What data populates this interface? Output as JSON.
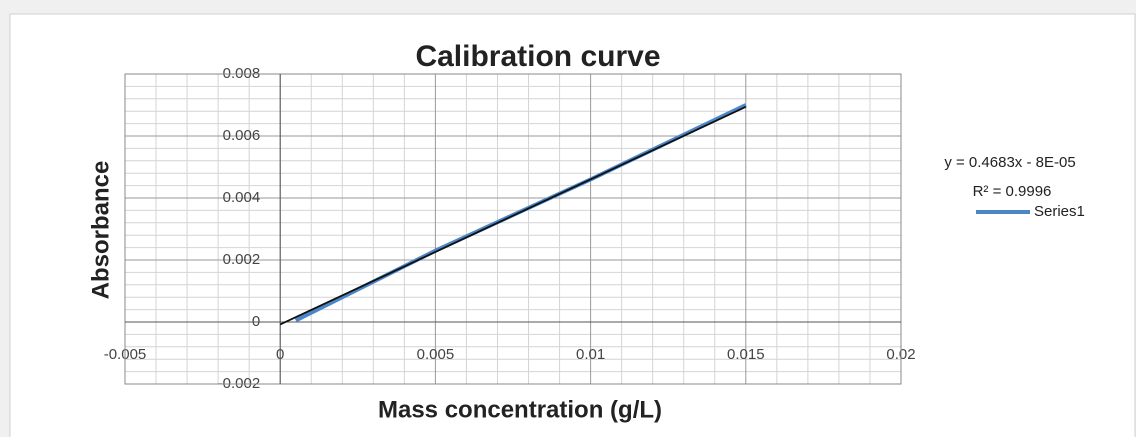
{
  "chart_data": {
    "type": "scatter",
    "title": "Calibration curve",
    "xlabel": "Mass concentration (g/L)",
    "ylabel": "Absorbance",
    "annotations": [
      "y = 0.4683x - 8E-05",
      "R² = 0.9996"
    ],
    "series": [
      {
        "name": "Series1",
        "color": "#4a86c8",
        "x": [
          0.0005,
          0.005,
          0.01,
          0.015
        ],
        "values": [
          5e-05,
          0.0023,
          0.0046,
          0.007
        ]
      }
    ],
    "trendline": {
      "color": "#111111",
      "x": [
        0,
        0.015
      ],
      "values": [
        -8e-05,
        0.00694
      ]
    },
    "xlim": [
      -0.005,
      0.02
    ],
    "xticks": [
      -0.005,
      0,
      0.005,
      0.01,
      0.015,
      0.02
    ],
    "ylim": [
      -0.002,
      0.008
    ],
    "yticks": [
      -0.002,
      0,
      0.002,
      0.004,
      0.006,
      0.008
    ],
    "grid": true
  }
}
